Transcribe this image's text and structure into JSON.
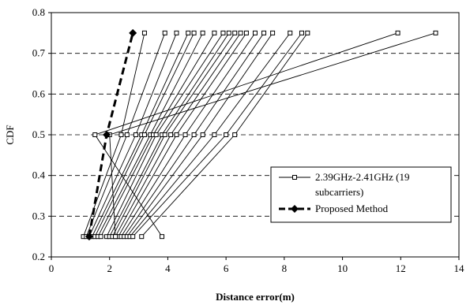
{
  "chart_data": {
    "type": "line",
    "xlabel": "Distance error(m)",
    "ylabel": "CDF",
    "xlim": [
      0,
      14
    ],
    "ylim": [
      0.2,
      0.8
    ],
    "x_ticks": [
      "0",
      "2",
      "4",
      "6",
      "8",
      "10",
      "12",
      "14"
    ],
    "y_ticks": [
      "0.2",
      "0.3",
      "0.4",
      "0.5",
      "0.6",
      "0.7",
      "0.8"
    ],
    "grid": "horizontal dashed",
    "legend_position": "right",
    "cdf_levels": [
      0.25,
      0.5,
      0.75
    ],
    "series": [
      {
        "name": "2.39GHz-2.41GHz (19 subcarriers)",
        "marker": "open-square",
        "color": "#000000",
        "curves": [
          [
            1.1,
            2.4,
            3.2
          ],
          [
            1.2,
            2.6,
            3.9
          ],
          [
            1.3,
            2.9,
            4.3
          ],
          [
            1.4,
            3.1,
            4.7
          ],
          [
            1.5,
            3.2,
            4.9
          ],
          [
            1.6,
            3.4,
            5.2
          ],
          [
            1.7,
            3.5,
            5.6
          ],
          [
            1.9,
            3.6,
            5.9
          ],
          [
            2.0,
            3.8,
            6.1
          ],
          [
            2.1,
            3.9,
            6.3
          ],
          [
            2.2,
            4.1,
            6.5
          ],
          [
            2.3,
            4.3,
            6.7
          ],
          [
            2.4,
            4.6,
            7.0
          ],
          [
            2.5,
            4.9,
            7.3
          ],
          [
            2.6,
            5.2,
            7.6
          ],
          [
            2.7,
            5.6,
            8.2
          ],
          [
            2.8,
            6.0,
            8.6
          ],
          [
            3.1,
            6.3,
            8.8
          ],
          [
            3.8,
            1.5,
            11.9
          ],
          [
            2.2,
            2.0,
            13.2
          ]
        ]
      },
      {
        "name": "Proposed Method",
        "marker": "filled-diamond",
        "color": "#000000",
        "dashed": true,
        "curves": [
          [
            1.3,
            1.9,
            2.8
          ]
        ]
      }
    ]
  }
}
